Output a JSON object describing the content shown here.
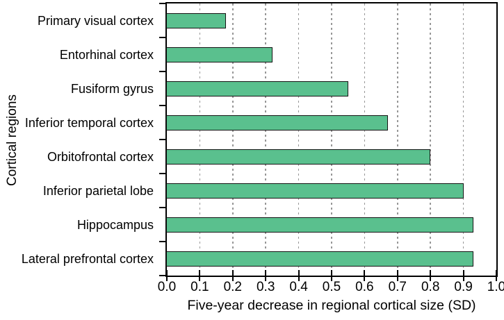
{
  "figure": {
    "background_color": "#ffffff",
    "border_color": "#000000",
    "text_color": "#000000"
  },
  "chart_data": {
    "type": "bar",
    "orientation": "horizontal",
    "title": "",
    "categories": [
      "Primary visual cortex",
      "Entorhinal cortex",
      "Fusiform gyrus",
      "Inferior temporal cortex",
      "Orbitofrontal cortex",
      "Inferior parietal lobe",
      "Hippocampus",
      "Lateral prefrontal cortex"
    ],
    "values": [
      0.18,
      0.32,
      0.55,
      0.67,
      0.8,
      0.9,
      0.93,
      0.93
    ],
    "xlabel": "Five-year decrease in regional cortical size (SD)",
    "ylabel": "Cortical regions",
    "xlim": [
      0.0,
      1.0
    ],
    "xticks": [
      "0.0",
      "0.1",
      "0.2",
      "0.3",
      "0.4",
      "0.5",
      "0.6",
      "0.7",
      "0.8",
      "0.9",
      "1.0"
    ],
    "grid": "vertical dashed gridlines at every 0.1, drawn behind bars",
    "legend": "none",
    "bar_color": "#5ac08e",
    "bar_edge_color": "#141414",
    "grid_color": "#979797"
  }
}
